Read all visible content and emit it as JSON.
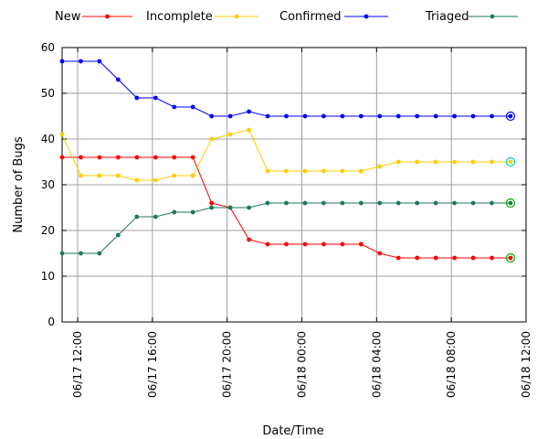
{
  "chart_data": {
    "type": "line",
    "xlabel": "Date/Time",
    "ylabel": "Number of Bugs",
    "ylim": [
      0,
      60
    ],
    "yticks": [
      0,
      10,
      20,
      30,
      40,
      50,
      60
    ],
    "xlim": [
      "06/17 11:10",
      "06/18 12:00"
    ],
    "xticks": [
      {
        "at": "06/17 12:00",
        "label": "06/17 12:00"
      },
      {
        "at": "06/17 16:00",
        "label": "06/17 16:00"
      },
      {
        "at": "06/17 20:00",
        "label": "06/17 20:00"
      },
      {
        "at": "06/18 00:00",
        "label": "06/18 00:00"
      },
      {
        "at": "06/18 04:00",
        "label": "06/18 04:00"
      },
      {
        "at": "06/18 08:00",
        "label": "06/18 08:00"
      },
      {
        "at": "06/18 12:00",
        "label": "06/18 12:00"
      }
    ],
    "grid": true,
    "legend_position": "top",
    "x": [
      "06/17 11:10",
      "06/17 12:10",
      "06/17 13:10",
      "06/17 14:10",
      "06/17 15:10",
      "06/17 16:10",
      "06/17 17:10",
      "06/17 18:10",
      "06/17 19:10",
      "06/17 20:10",
      "06/17 21:10",
      "06/17 22:10",
      "06/17 23:10",
      "06/18 00:10",
      "06/18 01:10",
      "06/18 02:10",
      "06/18 03:10",
      "06/18 04:10",
      "06/18 05:10",
      "06/18 06:10",
      "06/18 07:10",
      "06/18 08:10",
      "06/18 09:10",
      "06/18 10:10",
      "06/18 11:10"
    ],
    "series": [
      {
        "name": "New",
        "color": "#ff0000",
        "values": [
          36,
          36,
          36,
          36,
          36,
          36,
          36,
          36,
          26,
          25,
          18,
          17,
          17,
          17,
          17,
          17,
          17,
          15,
          14,
          14,
          14,
          14,
          14,
          14,
          14
        ]
      },
      {
        "name": "Incomplete",
        "color": "#ffcc00",
        "values": [
          41,
          32,
          32,
          32,
          31,
          31,
          32,
          32,
          40,
          41,
          42,
          33,
          33,
          33,
          33,
          33,
          33,
          34,
          35,
          35,
          35,
          35,
          35,
          35,
          35
        ]
      },
      {
        "name": "Confirmed",
        "color": "#0000ff",
        "values": [
          57,
          57,
          57,
          53,
          49,
          49,
          47,
          47,
          45,
          45,
          46,
          45,
          45,
          45,
          45,
          45,
          45,
          45,
          45,
          45,
          45,
          45,
          45,
          45,
          45
        ]
      },
      {
        "name": "Triaged",
        "color": "#1f7a55",
        "values": [
          15,
          15,
          15,
          19,
          23,
          23,
          24,
          24,
          25,
          25,
          25,
          26,
          26,
          26,
          26,
          26,
          26,
          26,
          26,
          26,
          26,
          26,
          26,
          26,
          26
        ]
      }
    ],
    "last_point_ring_colors": [
      "#00aa00",
      "#00cccc",
      "#0000ff",
      "#00aa00"
    ]
  }
}
